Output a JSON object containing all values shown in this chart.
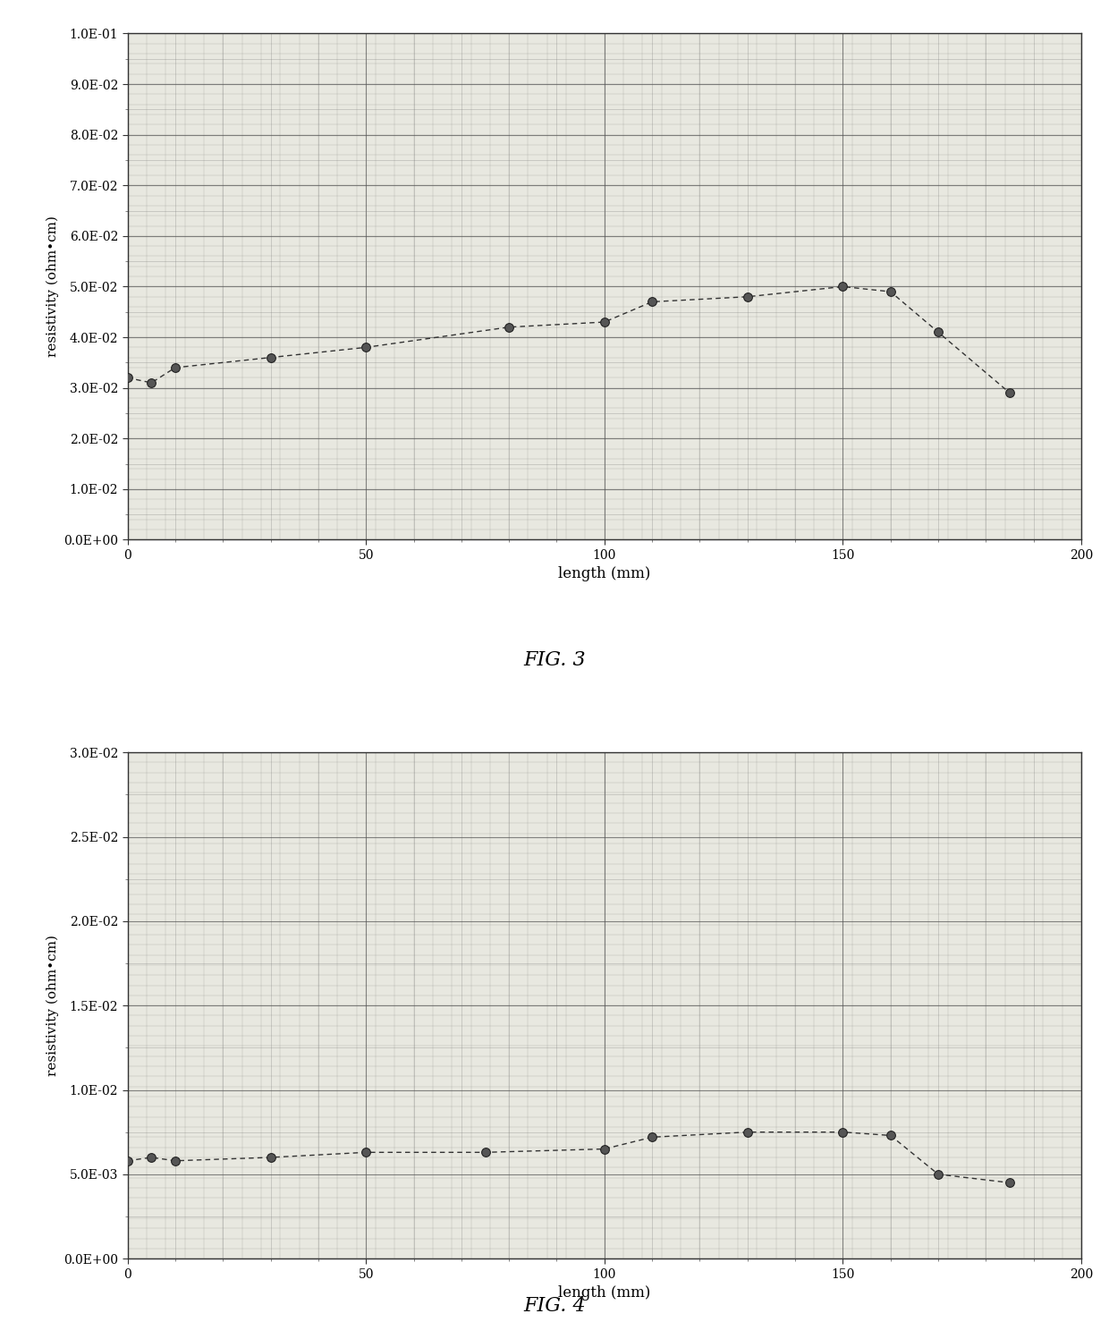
{
  "fig3": {
    "x": [
      0,
      5,
      10,
      30,
      50,
      80,
      100,
      110,
      130,
      150,
      160,
      170,
      185
    ],
    "y": [
      0.032,
      0.031,
      0.034,
      0.036,
      0.038,
      0.042,
      0.043,
      0.047,
      0.048,
      0.05,
      0.049,
      0.041,
      0.029
    ],
    "xlabel": "length (mm)",
    "ylabel": "resistivity (ohm•cm)",
    "title": "FIG. 3",
    "ylim": [
      0.0,
      0.1
    ],
    "yticks": [
      0.0,
      0.01,
      0.02,
      0.03,
      0.04,
      0.05,
      0.06,
      0.07,
      0.08,
      0.09,
      0.1
    ],
    "ytick_labels": [
      "0.0E+00",
      "1.0E-02",
      "2.0E-02",
      "3.0E-02",
      "4.0E-02",
      "5.0E-02",
      "6.0E-02",
      "7.0E-02",
      "8.0E-02",
      "9.0E-02",
      "1.0E-01"
    ],
    "xlim": [
      0,
      200
    ],
    "xticks": [
      0,
      50,
      100,
      150,
      200
    ]
  },
  "fig4": {
    "x": [
      0,
      5,
      10,
      30,
      50,
      75,
      100,
      110,
      130,
      150,
      160,
      170,
      185
    ],
    "y": [
      0.0058,
      0.006,
      0.0058,
      0.006,
      0.0063,
      0.0063,
      0.0065,
      0.0072,
      0.0075,
      0.0075,
      0.0073,
      0.005,
      0.0045
    ],
    "xlabel": "length (mm)",
    "ylabel": "resistivity (ohm•cm)",
    "title": "FIG. 4",
    "ylim": [
      0.0,
      0.03
    ],
    "yticks": [
      0.0,
      0.005,
      0.01,
      0.015,
      0.02,
      0.025,
      0.03
    ],
    "ytick_labels": [
      "0.0E+00",
      "5.0E-03",
      "1.0E-02",
      "1.5E-02",
      "2.0E-02",
      "2.5E-02",
      "3.0E-02"
    ],
    "xlim": [
      0,
      200
    ],
    "xticks": [
      0,
      50,
      100,
      150,
      200
    ]
  },
  "background_color": "#e8e8e0",
  "grid_major_color": "#555555",
  "grid_minor_color": "#999999",
  "line_color": "#333333",
  "marker_color": "#555555",
  "marker_size": 7,
  "line_style": "--",
  "font_family": "serif",
  "hatch_color": "#aaaaaa"
}
